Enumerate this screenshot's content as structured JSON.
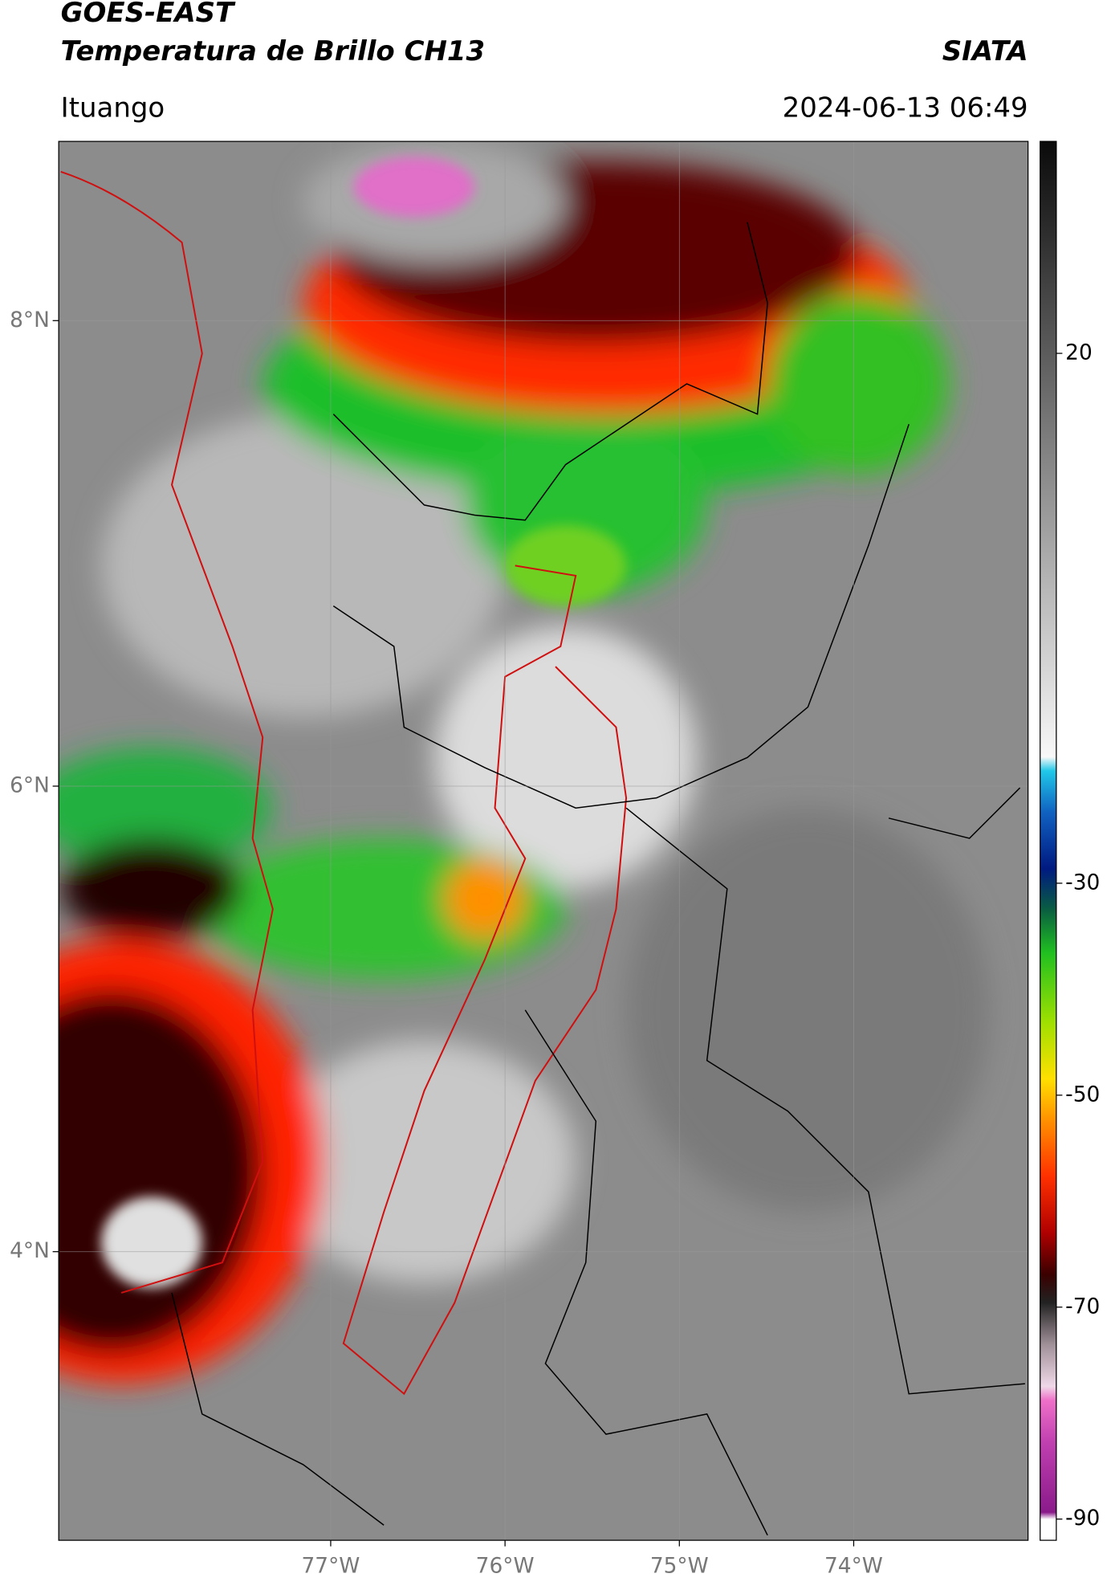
{
  "header": {
    "satellite": "GOES-EAST",
    "product": "Temperatura de Brillo CH13",
    "agency": "SIATA",
    "location": "Ituango",
    "datetime": "2024-06-13 06:49"
  },
  "map": {
    "lon_lim": [
      -78.56,
      -73.0
    ],
    "lat_lim": [
      2.76,
      8.77
    ],
    "lat_ticks": [
      {
        "value": 8,
        "label": "8°N"
      },
      {
        "value": 6,
        "label": "6°N"
      },
      {
        "value": 4,
        "label": "4°N"
      }
    ],
    "lon_ticks": [
      {
        "value": -77,
        "label": "77°W"
      },
      {
        "value": -76,
        "label": "76°W"
      },
      {
        "value": -75,
        "label": "75°W"
      },
      {
        "value": -74,
        "label": "74°W"
      }
    ],
    "colorbar": {
      "lim": [
        -92,
        40
      ],
      "ticks": [
        20,
        -30,
        -50,
        -70,
        -90
      ]
    }
  }
}
